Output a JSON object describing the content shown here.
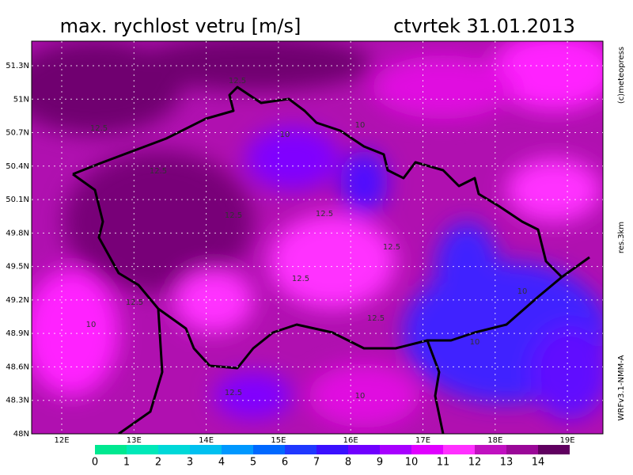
{
  "header": {
    "title": "max. rychlost vetru [m/s]",
    "date": "ctvrtek 31.01.2013"
  },
  "side_labels": [
    "(c)meteopress",
    "res.3km",
    "WRFv3.1-NMM-A"
  ],
  "map": {
    "lat_labels": [
      "51.3N",
      "51N",
      "50.7N",
      "50.4N",
      "50.1N",
      "49.8N",
      "49.5N",
      "49.2N",
      "48.9N",
      "48.6N",
      "48.3N",
      "48N"
    ],
    "lon_labels": [
      "12E",
      "13E",
      "14E",
      "15E",
      "16E",
      "17E",
      "18E",
      "19E"
    ],
    "contour_labels": [
      "12.5",
      "12.5",
      "10",
      "12.5",
      "12.5",
      "10",
      "12.5",
      "12.5",
      "12.5",
      "10",
      "12.5",
      "10",
      "12.5",
      "10",
      "12.5",
      "10"
    ]
  },
  "colorbar": {
    "labels": [
      0,
      1,
      2,
      3,
      4,
      5,
      6,
      7,
      8,
      9,
      10,
      11,
      12,
      13,
      14
    ],
    "colors": [
      "#ffffff",
      "#00e890",
      "#00e8b8",
      "#00d8d8",
      "#00c0f0",
      "#0098ff",
      "#0068ff",
      "#2038ff",
      "#3a10ff",
      "#7000ff",
      "#a800ff",
      "#e000ff",
      "#ff30ff",
      "#c010c0",
      "#9a0898",
      "#600060"
    ]
  }
}
